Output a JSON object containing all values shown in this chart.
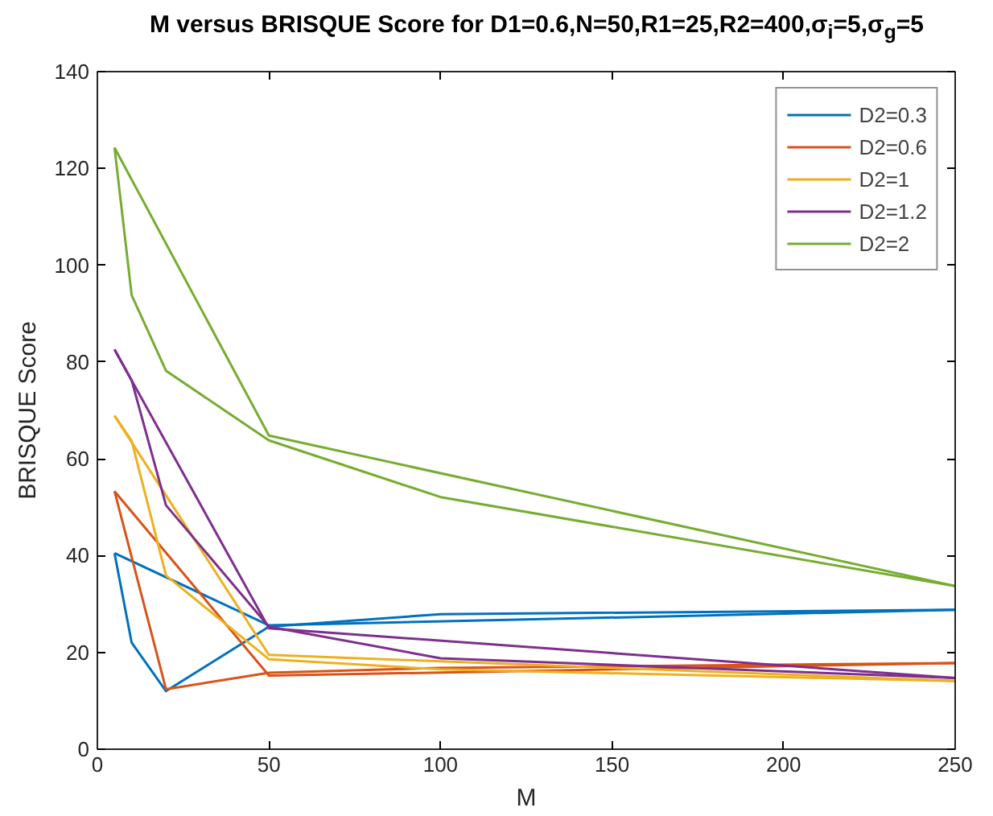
{
  "chart_data": {
    "type": "line",
    "title": "M versus BRISQUE Score for D1=0.6,N=50,R1=25,R2=400,σ$_{i}$=5,σ$_{g}$=5",
    "xlabel": "M",
    "ylabel": "BRISQUE Score",
    "xlim": [
      0,
      250
    ],
    "xticks": [
      0,
      50,
      100,
      150,
      200,
      250
    ],
    "ylim": [
      0,
      140
    ],
    "yticks": [
      0,
      20,
      40,
      60,
      80,
      100,
      120,
      140
    ],
    "grid": false,
    "legend": "top right",
    "line_style": "solid",
    "series": [
      {
        "name": "D2=0.3",
        "color": "#0072bd",
        "x": [
          5,
          10,
          20,
          50,
          100,
          250
        ],
        "values": [
          40.5,
          22,
          12,
          25.3,
          27.9,
          28.8
        ]
      },
      {
        "color": "#0072bd",
        "x": [
          5,
          50,
          250
        ],
        "values": [
          40.5,
          25.6,
          28.8
        ]
      },
      {
        "name": "D2=0.6",
        "color": "#d95319",
        "x": [
          5,
          20,
          50,
          100,
          250
        ],
        "values": [
          53.3,
          12.4,
          15.8,
          16.8,
          17.8
        ]
      },
      {
        "color": "#d95319",
        "x": [
          5,
          50,
          250
        ],
        "values": [
          53.3,
          15.2,
          17.8
        ]
      },
      {
        "name": "D2=1",
        "color": "#edb120",
        "x": [
          5,
          10,
          20,
          50,
          100,
          250
        ],
        "values": [
          68.9,
          63.7,
          35.9,
          18.6,
          16.5,
          14.1
        ]
      },
      {
        "color": "#edb120",
        "x": [
          5,
          50,
          250
        ],
        "values": [
          68.9,
          19.5,
          14.1
        ]
      },
      {
        "name": "D2=1.2",
        "color": "#7e2f8e",
        "x": [
          5,
          10,
          20,
          50,
          100,
          250
        ],
        "values": [
          82.6,
          76.2,
          50.4,
          25.3,
          18.8,
          14.7
        ]
      },
      {
        "color": "#7e2f8e",
        "x": [
          5,
          50,
          250
        ],
        "values": [
          82.6,
          25.0,
          14.7
        ]
      },
      {
        "name": "D2=2",
        "color": "#77ac30",
        "x": [
          5,
          10,
          20,
          50,
          100,
          250
        ],
        "values": [
          124.3,
          93.8,
          78.2,
          63.8,
          52.1,
          33.7
        ]
      },
      {
        "color": "#77ac30",
        "x": [
          5,
          50,
          250
        ],
        "values": [
          124.3,
          64.8,
          33.7
        ]
      }
    ]
  }
}
